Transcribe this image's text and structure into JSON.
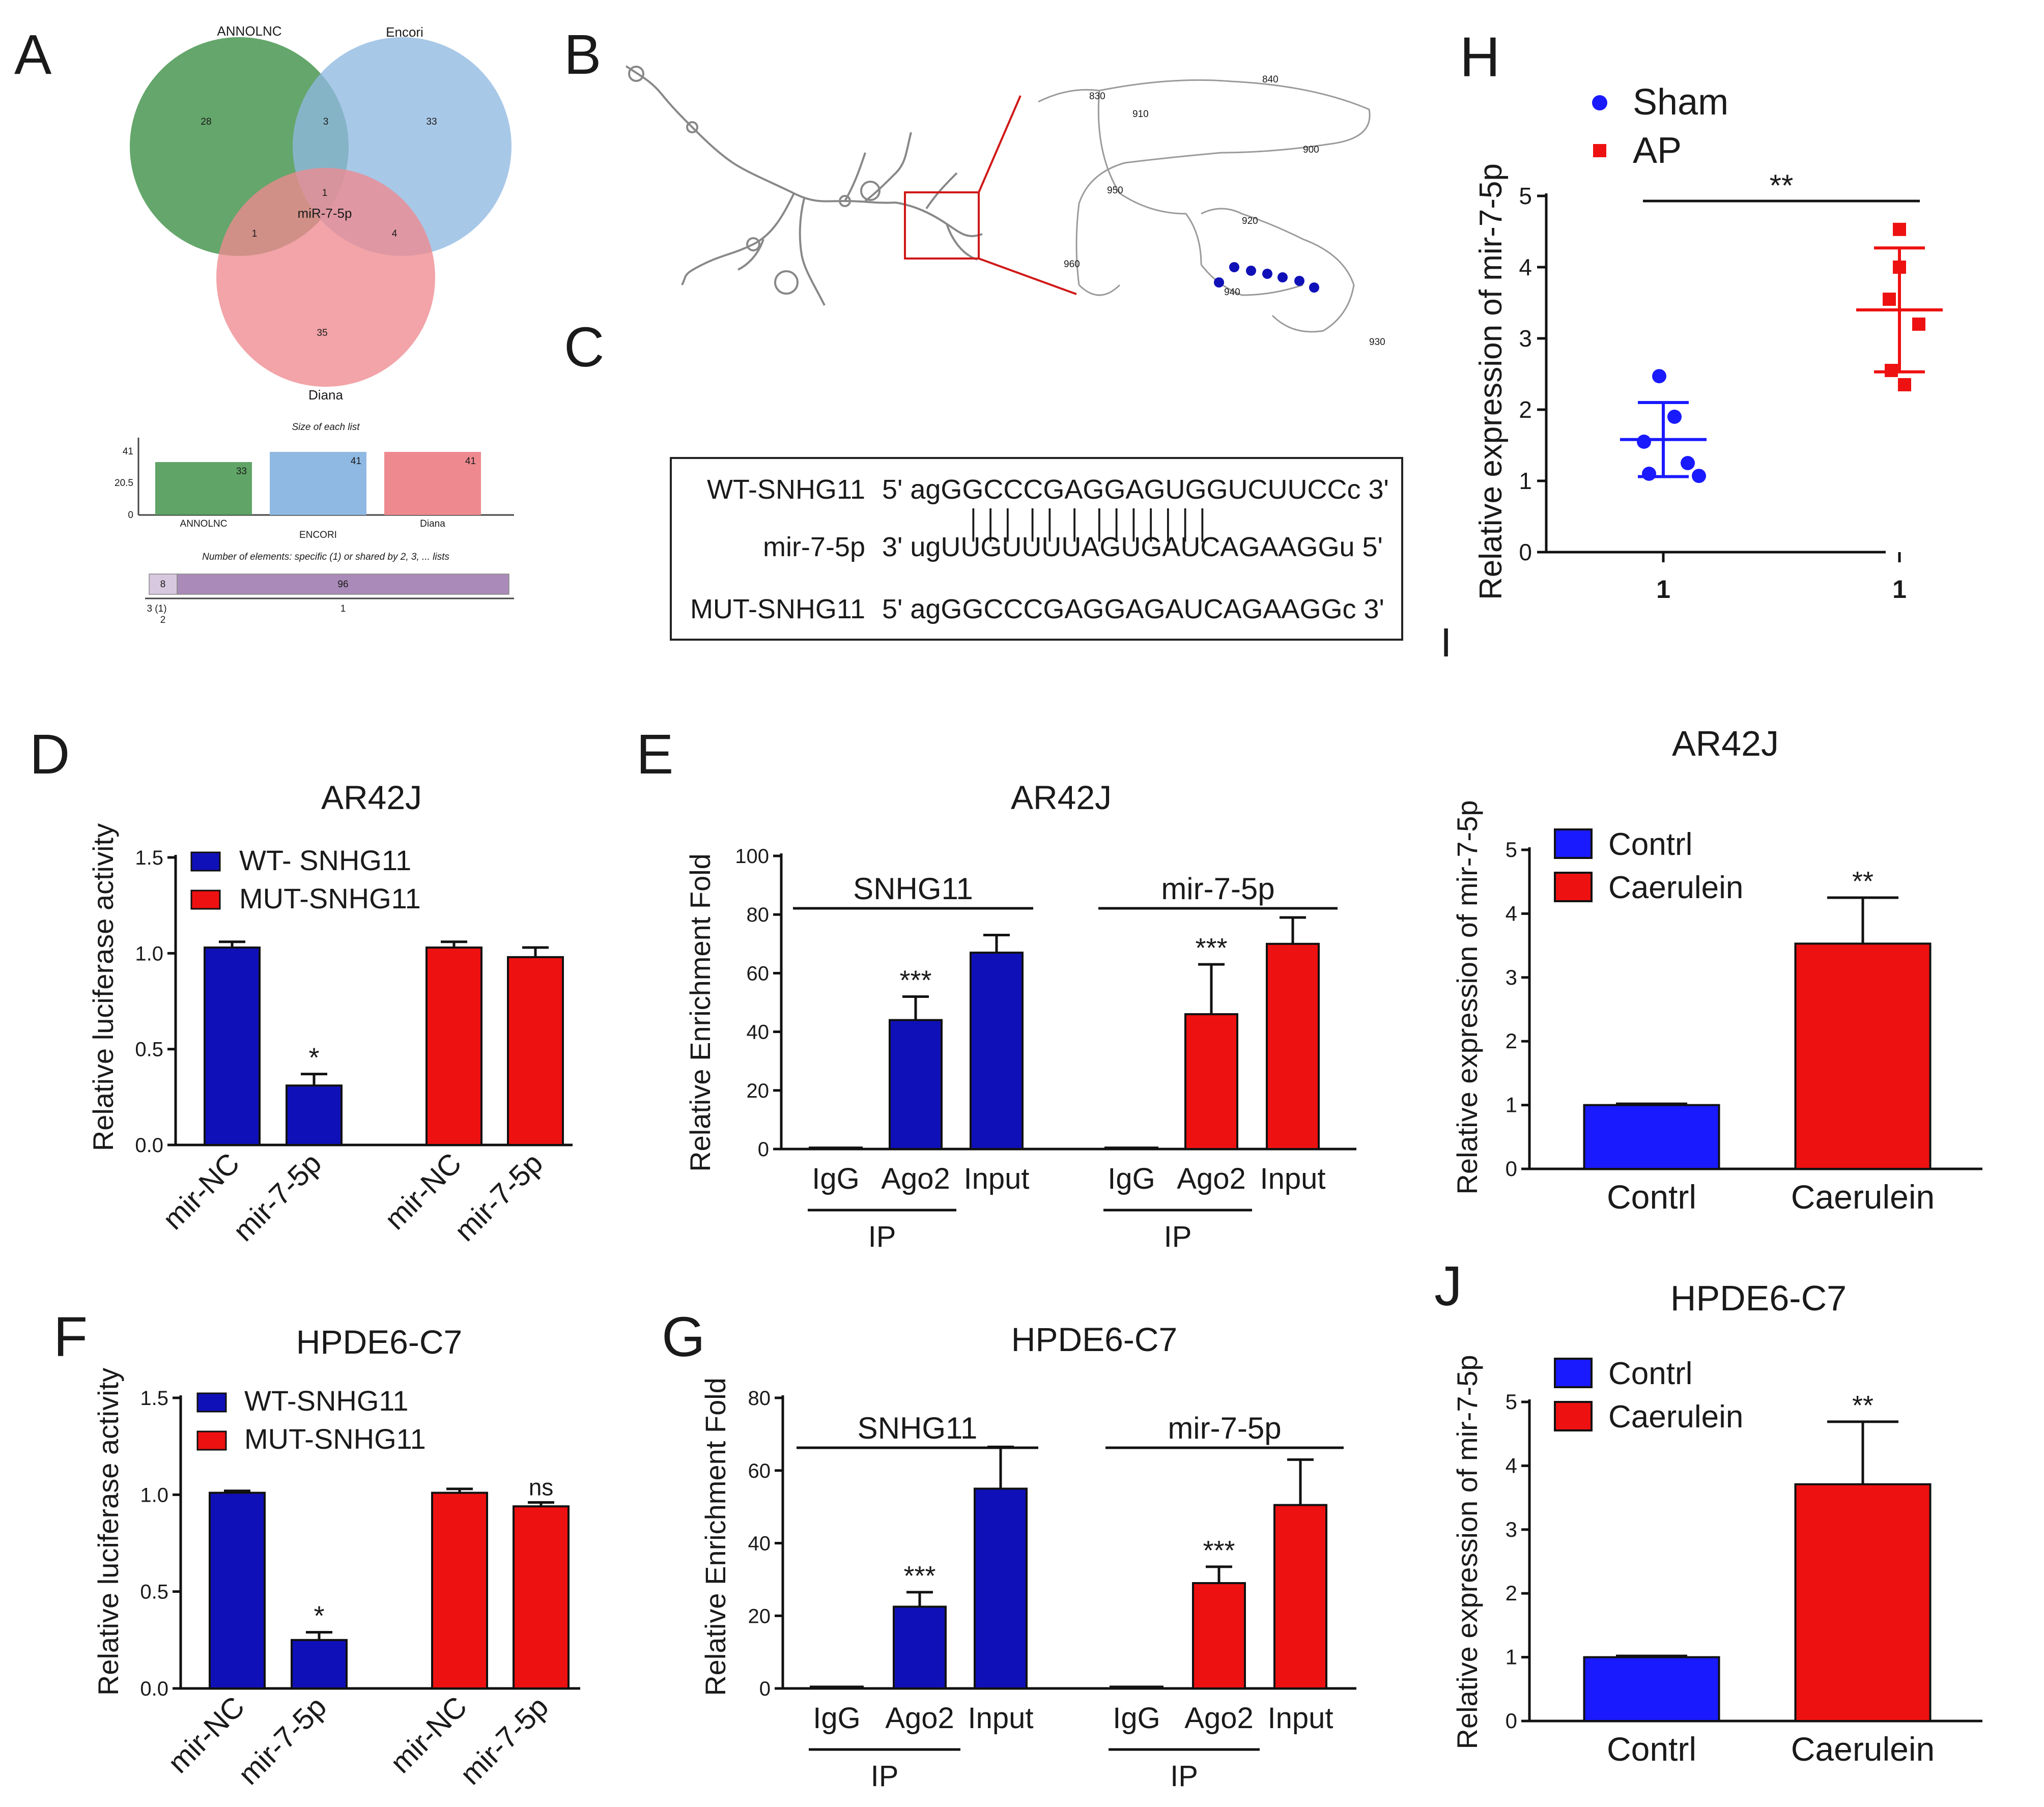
{
  "colors": {
    "blue": "#1010b8",
    "red": "#ee1111",
    "brightblue": "#1a1aff",
    "venn_green": "#4f9a57",
    "venn_blue": "#8fb9e2",
    "venn_red": "#ee8a8f",
    "upset_purple": "#a98ab8"
  },
  "panels": {
    "A": {
      "label": "A",
      "venn": {
        "sets": [
          "ANNOLNC",
          "Encori",
          "Diana"
        ],
        "regions": {
          "annolnc_only": "28",
          "encori_only": "33",
          "diana_only": "35",
          "annolnc_encori": "3",
          "annolnc_diana": "1",
          "encori_diana": "4",
          "all_three": "1",
          "all_three_label": "miR-7-5p"
        }
      },
      "upset": {
        "title": "Size of each list",
        "yticks": [
          "41",
          "20.5",
          "0"
        ],
        "lists": [
          {
            "name": "ANNOLNC",
            "value": 33
          },
          {
            "name": "ENCORI",
            "value": 41
          },
          {
            "name": "Diana",
            "value": 41
          }
        ],
        "caption": "Number of elements: specific (1) or shared by 2, 3, ... lists",
        "segments": [
          {
            "label": "8",
            "value": 8
          },
          {
            "label": "96",
            "value": 96
          }
        ],
        "axis_ticks": [
          "3 (1)",
          "2",
          "1"
        ]
      }
    },
    "B": {
      "label": "B",
      "positions": [
        "830",
        "840",
        "910",
        "900",
        "950",
        "920",
        "960",
        "940",
        "930"
      ]
    },
    "C": {
      "label": "C",
      "rows": [
        {
          "name": "WT-SNHG11",
          "seq": "5' agGGCCCGAGGAGUGGUCUUCCc 3'"
        },
        {
          "name": "",
          "seq": "│││  ││   │ │││││││"
        },
        {
          "name": "mir-7-5p",
          "seq": "3' ugUUGUUUUAGUGAUCAGAAGGu 5'"
        },
        {
          "name": "MUT-SNHG11",
          "seq": "5' agGGCCCGAGGAGAUCAGAAGGc 3'"
        }
      ]
    },
    "D": {
      "label": "D",
      "chart_data": {
        "type": "bar",
        "title": "AR42J",
        "ylabel": "Relative luciferase activity",
        "ylim": [
          0,
          1.5
        ],
        "yticks": [
          "0.0",
          "0.5",
          "1.0",
          "1.5"
        ],
        "legend": [
          "WT- SNHG11",
          "MUT-SNHG11"
        ],
        "categories": [
          "mir-NC",
          "mir-7-5p",
          "mir-NC",
          "mir-7-5p"
        ],
        "values": [
          1.03,
          0.31,
          1.03,
          0.98
        ],
        "errors": [
          0.03,
          0.06,
          0.03,
          0.05
        ],
        "series_index": [
          0,
          0,
          1,
          1
        ],
        "stars": [
          "",
          "*",
          "",
          ""
        ]
      }
    },
    "E": {
      "label": "E",
      "chart_data": {
        "type": "bar",
        "title": "AR42J",
        "ylabel": "Relative Enrichment Fold",
        "ylim": [
          0,
          100
        ],
        "yticks": [
          "0",
          "20",
          "40",
          "60",
          "80",
          "100"
        ],
        "groups": [
          "SNHG11",
          "mir-7-5p"
        ],
        "categories": [
          "IgG",
          "Ago2",
          "Input",
          "IgG",
          "Ago2",
          "Input"
        ],
        "values": [
          0.5,
          44,
          67,
          0.5,
          46,
          70
        ],
        "errors": [
          0,
          8,
          6,
          0,
          17,
          9
        ],
        "series_index": [
          0,
          0,
          0,
          1,
          1,
          1
        ],
        "stars": [
          "",
          "***",
          "",
          "",
          "***",
          ""
        ],
        "ip_label": "IP"
      }
    },
    "F": {
      "label": "F",
      "chart_data": {
        "type": "bar",
        "title": "HPDE6-C7",
        "ylabel": "Relative luciferase activity",
        "ylim": [
          0,
          1.5
        ],
        "yticks": [
          "0.0",
          "0.5",
          "1.0",
          "1.5"
        ],
        "legend": [
          "WT-SNHG11",
          "MUT-SNHG11"
        ],
        "categories": [
          "mir-NC",
          "mir-7-5p",
          "mir-NC",
          "mir-7-5p"
        ],
        "values": [
          1.01,
          0.25,
          1.01,
          0.94
        ],
        "errors": [
          0.01,
          0.04,
          0.02,
          0.02
        ],
        "series_index": [
          0,
          0,
          1,
          1
        ],
        "stars": [
          "",
          "*",
          "",
          "ns"
        ]
      }
    },
    "G": {
      "label": "G",
      "chart_data": {
        "type": "bar",
        "title": "HPDE6-C7",
        "ylabel": "Relative Enrichment Fold",
        "ylim": [
          0,
          80
        ],
        "yticks": [
          "0",
          "20",
          "40",
          "60",
          "80"
        ],
        "groups": [
          "SNHG11",
          "mir-7-5p"
        ],
        "categories": [
          "IgG",
          "Ago2",
          "Input",
          "IgG",
          "Ago2",
          "Input"
        ],
        "values": [
          0.5,
          22.5,
          55,
          0.5,
          29,
          50.5
        ],
        "errors": [
          0,
          4,
          11.5,
          0,
          4.5,
          12.5
        ],
        "series_index": [
          0,
          0,
          0,
          1,
          1,
          1
        ],
        "stars": [
          "",
          "***",
          "",
          "",
          "***",
          ""
        ],
        "ip_label": "IP"
      }
    },
    "H": {
      "label": "H",
      "chart_data": {
        "type": "scatter",
        "ylabel": "Relative expression of mir-7-5p",
        "ylim": [
          0,
          5
        ],
        "yticks": [
          "0",
          "1",
          "2",
          "3",
          "4",
          "5"
        ],
        "xticks": [
          "1",
          "1"
        ],
        "legend": [
          "Sham",
          "AP"
        ],
        "series": [
          {
            "name": "Sham",
            "points": [
              2.47,
              1.9,
              1.55,
              1.25,
              1.1,
              1.07
            ],
            "mean": 1.58,
            "sd": 0.52
          },
          {
            "name": "AP",
            "points": [
              4.53,
              4.0,
              3.55,
              3.2,
              2.55,
              2.35
            ],
            "mean": 3.4,
            "sd": 0.87
          }
        ],
        "significance": "**"
      }
    },
    "I": {
      "label": "I",
      "chart_data": {
        "type": "bar",
        "title": "AR42J",
        "ylabel": "Relative expression of mir-7-5p",
        "ylim": [
          0,
          5
        ],
        "yticks": [
          "0",
          "1",
          "2",
          "3",
          "4",
          "5"
        ],
        "categories": [
          "Contrl",
          "Caerulein"
        ],
        "legend": [
          "Contrl",
          "Caerulein"
        ],
        "values": [
          1.0,
          3.53
        ],
        "errors": [
          0.02,
          0.72
        ],
        "stars": [
          "",
          "**"
        ]
      }
    },
    "J": {
      "label": "J",
      "chart_data": {
        "type": "bar",
        "title": "HPDE6-C7",
        "ylabel": "Relative expression of mir-7-5p",
        "ylim": [
          0,
          5
        ],
        "yticks": [
          "0",
          "1",
          "2",
          "3",
          "4",
          "5"
        ],
        "categories": [
          "Contrl",
          "Caerulein"
        ],
        "legend": [
          "Contrl",
          "Caerulein"
        ],
        "values": [
          1.0,
          3.71
        ],
        "errors": [
          0.02,
          0.98
        ],
        "stars": [
          "",
          "**"
        ]
      }
    }
  }
}
